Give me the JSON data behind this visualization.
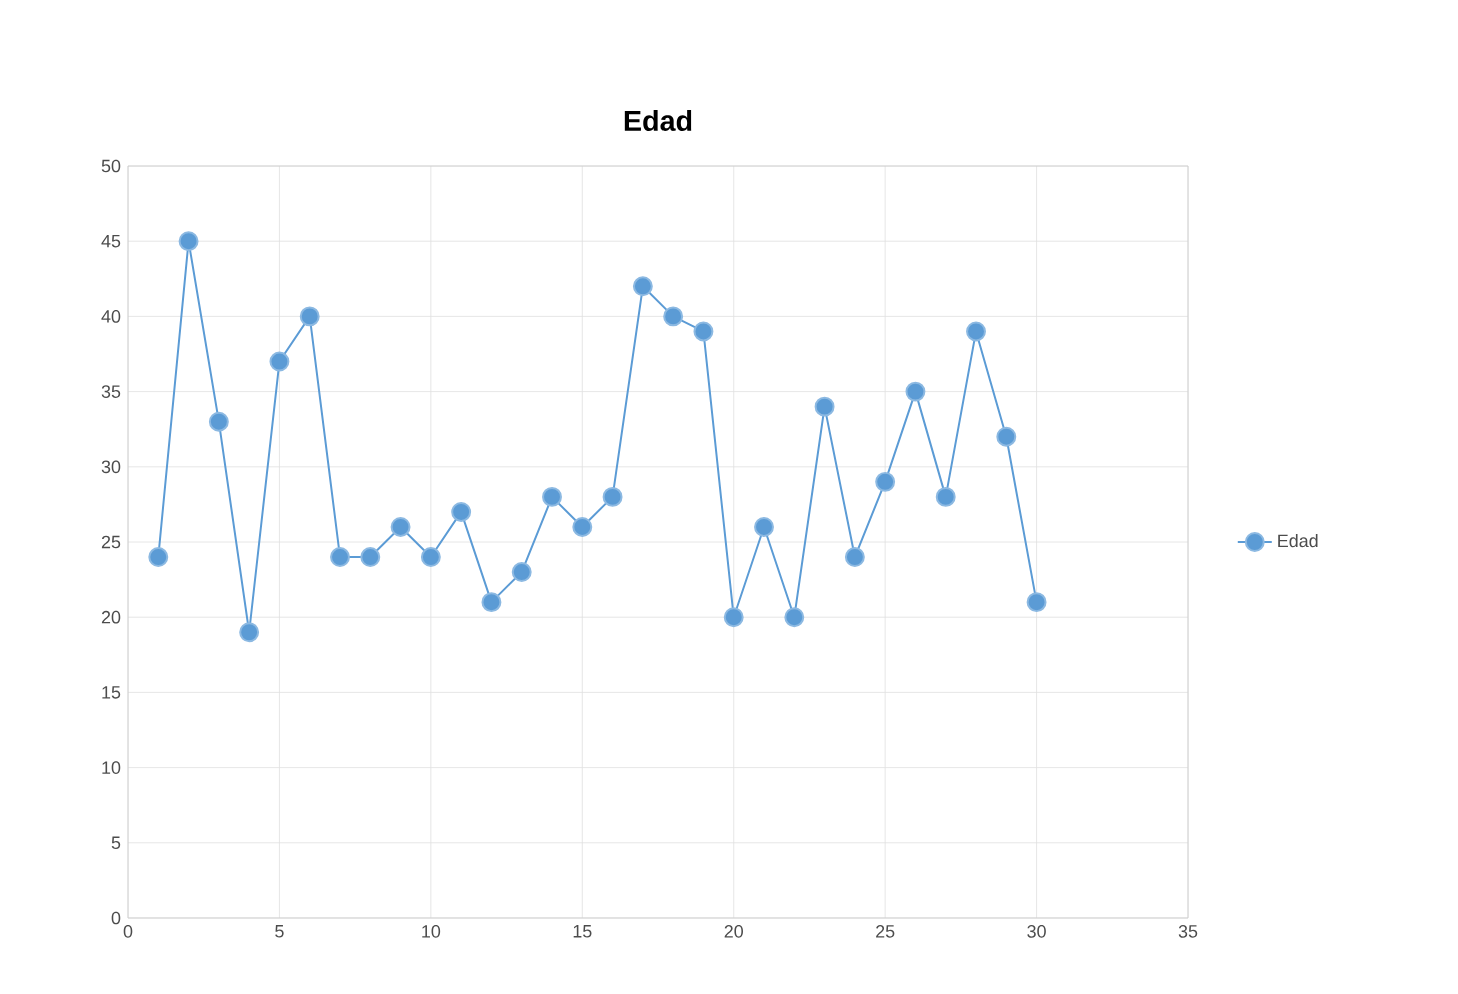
{
  "chart_data": {
    "type": "line",
    "title": "Edad",
    "x": [
      1,
      2,
      3,
      4,
      5,
      6,
      7,
      8,
      9,
      10,
      11,
      12,
      13,
      14,
      15,
      16,
      17,
      18,
      19,
      20,
      21,
      22,
      23,
      24,
      25,
      26,
      27,
      28,
      29,
      30
    ],
    "series": [
      {
        "name": "Edad",
        "color": "#5b9bd5",
        "values": [
          24,
          45,
          33,
          19,
          37,
          40,
          24,
          24,
          26,
          24,
          27,
          21,
          23,
          28,
          26,
          28,
          42,
          40,
          39,
          20,
          26,
          20,
          34,
          24,
          29,
          35,
          28,
          39,
          32,
          21
        ]
      }
    ],
    "xlim": [
      0,
      35
    ],
    "xticks": [
      0,
      5,
      10,
      15,
      20,
      25,
      30,
      35
    ],
    "ylim": [
      0,
      50
    ],
    "yticks": [
      0,
      5,
      10,
      15,
      20,
      25,
      30,
      35,
      40,
      45,
      50
    ],
    "grid": true,
    "legend": "right",
    "marker": "circle",
    "line_style": "solid"
  }
}
